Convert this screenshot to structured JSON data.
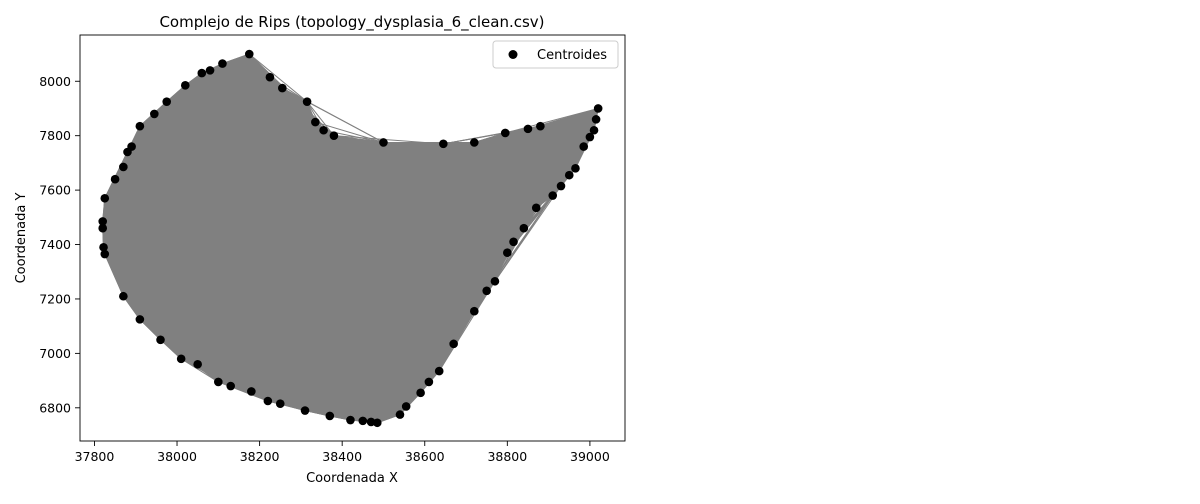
{
  "chart_data": {
    "type": "scatter",
    "title": "Complejo de Rips (topology_dysplasia_6_clean.csv)",
    "xlabel": "Coordenada X",
    "ylabel": "Coordenada Y",
    "xlim": [
      37765,
      39085
    ],
    "ylim": [
      6678,
      8170
    ],
    "xticks": [
      37800,
      38000,
      38200,
      38400,
      38600,
      38800,
      39000
    ],
    "yticks": [
      6800,
      7000,
      7200,
      7400,
      7600,
      7800,
      8000
    ],
    "grid": false,
    "legend": {
      "position": "top-right",
      "entries": [
        "Centroides"
      ]
    },
    "colors": {
      "points": "#000000",
      "complex": "#808080",
      "complex_edges": "#808080"
    },
    "series": [
      {
        "name": "Centroides",
        "points": [
          [
            38175,
            8100
          ],
          [
            38110,
            8065
          ],
          [
            38080,
            8040
          ],
          [
            38060,
            8030
          ],
          [
            38020,
            7985
          ],
          [
            37975,
            7925
          ],
          [
            37945,
            7880
          ],
          [
            37910,
            7835
          ],
          [
            37890,
            7760
          ],
          [
            37880,
            7740
          ],
          [
            37870,
            7685
          ],
          [
            37850,
            7640
          ],
          [
            37825,
            7570
          ],
          [
            37820,
            7485
          ],
          [
            37820,
            7460
          ],
          [
            37822,
            7390
          ],
          [
            37825,
            7365
          ],
          [
            37870,
            7210
          ],
          [
            37910,
            7125
          ],
          [
            37960,
            7050
          ],
          [
            38010,
            6980
          ],
          [
            38050,
            6960
          ],
          [
            38100,
            6895
          ],
          [
            38130,
            6880
          ],
          [
            38180,
            6860
          ],
          [
            38220,
            6825
          ],
          [
            38250,
            6815
          ],
          [
            38310,
            6790
          ],
          [
            38370,
            6770
          ],
          [
            38420,
            6755
          ],
          [
            38450,
            6752
          ],
          [
            38470,
            6748
          ],
          [
            38485,
            6745
          ],
          [
            38540,
            6775
          ],
          [
            38555,
            6805
          ],
          [
            38590,
            6855
          ],
          [
            38610,
            6895
          ],
          [
            38635,
            6935
          ],
          [
            38670,
            7035
          ],
          [
            38720,
            7155
          ],
          [
            38750,
            7230
          ],
          [
            38770,
            7265
          ],
          [
            38800,
            7370
          ],
          [
            38815,
            7410
          ],
          [
            38840,
            7460
          ],
          [
            38870,
            7535
          ],
          [
            38910,
            7580
          ],
          [
            38930,
            7615
          ],
          [
            38950,
            7655
          ],
          [
            38965,
            7680
          ],
          [
            38985,
            7760
          ],
          [
            39000,
            7795
          ],
          [
            39010,
            7820
          ],
          [
            39015,
            7860
          ],
          [
            39020,
            7900
          ],
          [
            38880,
            7835
          ],
          [
            38850,
            7825
          ],
          [
            38795,
            7810
          ],
          [
            38720,
            7775
          ],
          [
            38645,
            7770
          ],
          [
            38500,
            7775
          ],
          [
            38380,
            7800
          ],
          [
            38355,
            7820
          ],
          [
            38335,
            7850
          ],
          [
            38315,
            7925
          ],
          [
            38255,
            7975
          ],
          [
            38225,
            8015
          ]
        ]
      }
    ]
  }
}
